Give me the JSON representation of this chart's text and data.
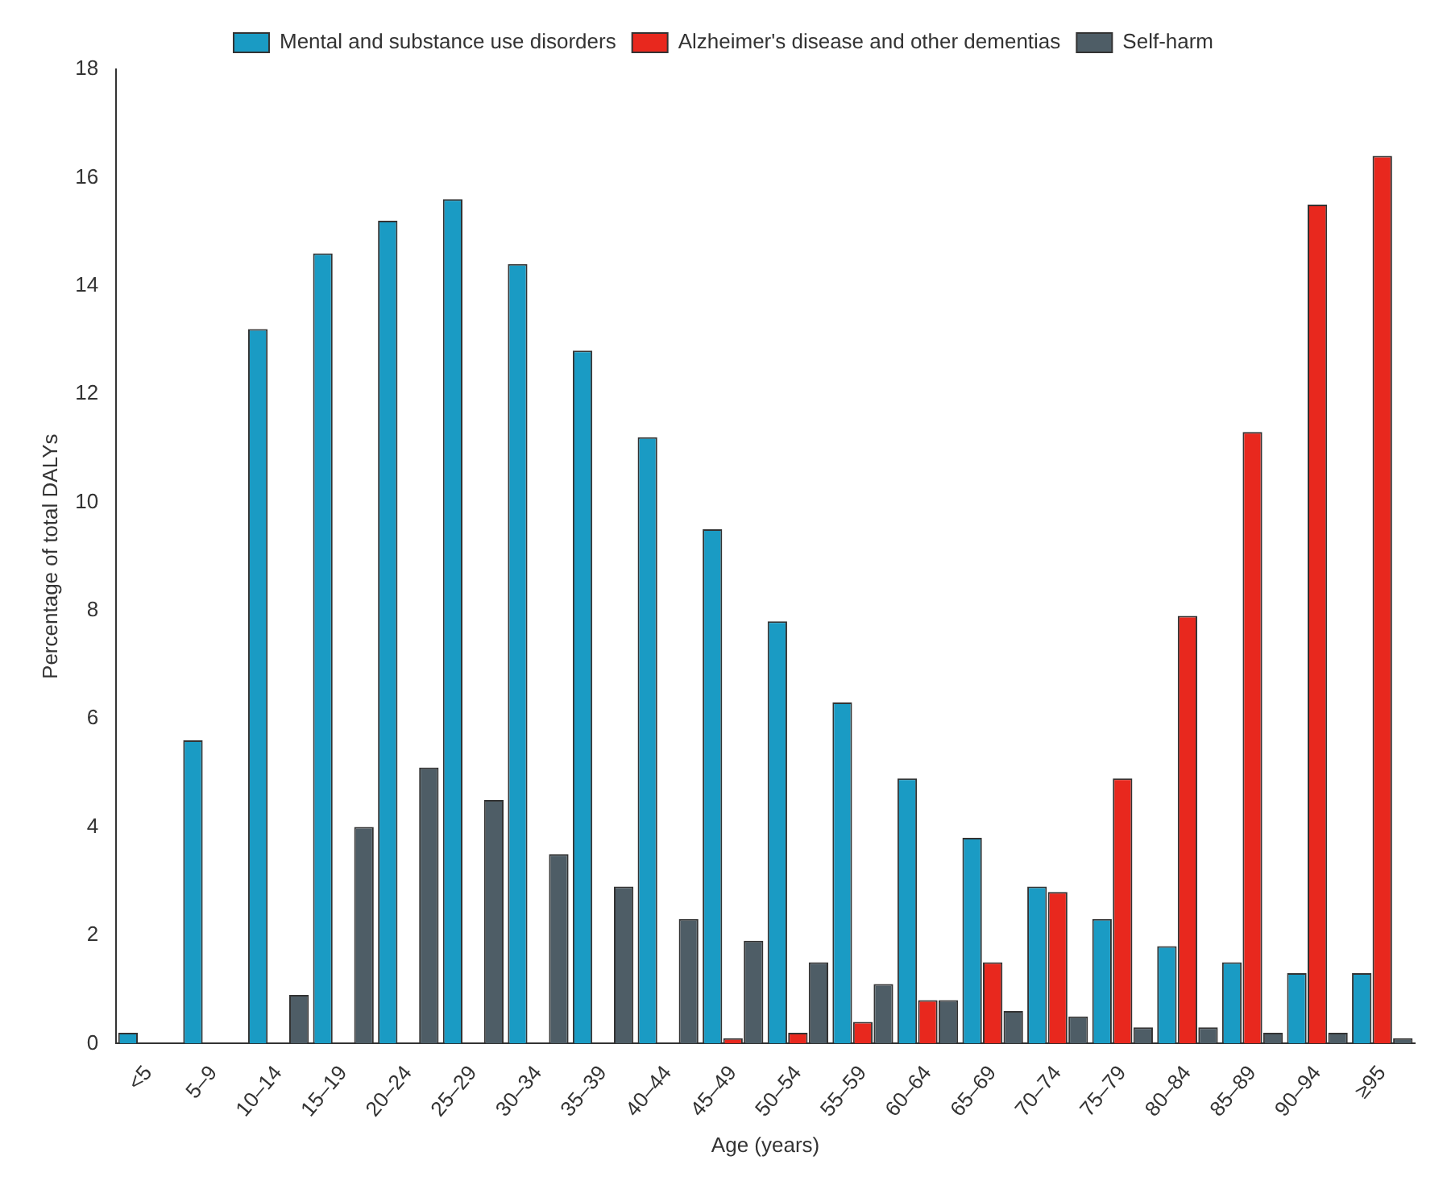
{
  "chart_data": {
    "type": "bar",
    "xlabel": "Age (years)",
    "ylabel": "Percentage of total DALYs",
    "categories": [
      "<5",
      "5–9",
      "10–14",
      "15–19",
      "20–24",
      "25–29",
      "30–34",
      "35–39",
      "40–44",
      "45–49",
      "50–54",
      "55–59",
      "60–64",
      "65–69",
      "70–74",
      "75–79",
      "80–84",
      "85–89",
      "90–94",
      "≥95"
    ],
    "series": [
      {
        "name": "Mental and substance use disorders",
        "color": "#1a9bc4",
        "values": [
          0.2,
          5.6,
          13.2,
          14.6,
          15.2,
          15.6,
          14.4,
          12.8,
          11.2,
          9.5,
          7.8,
          6.3,
          4.9,
          3.8,
          2.9,
          2.3,
          1.8,
          1.5,
          1.3,
          1.3
        ]
      },
      {
        "name": "Alzheimer's disease and other dementias",
        "color": "#e8281e",
        "values": [
          0,
          0,
          0,
          0,
          0,
          0,
          0,
          0,
          0,
          0.1,
          0.2,
          0.4,
          0.8,
          1.5,
          2.8,
          4.9,
          7.9,
          11.3,
          15.5,
          16.4
        ]
      },
      {
        "name": "Self-harm",
        "color": "#4e5d66",
        "values": [
          0,
          0,
          0.9,
          4.0,
          5.1,
          4.5,
          3.5,
          2.9,
          2.3,
          1.9,
          1.5,
          1.1,
          0.8,
          0.6,
          0.5,
          0.3,
          0.3,
          0.2,
          0.2,
          0.1
        ]
      }
    ],
    "ylim": [
      0,
      18
    ],
    "yticks": [
      0,
      2,
      4,
      6,
      8,
      10,
      12,
      14,
      16,
      18
    ],
    "grid": false,
    "legend": "top"
  }
}
